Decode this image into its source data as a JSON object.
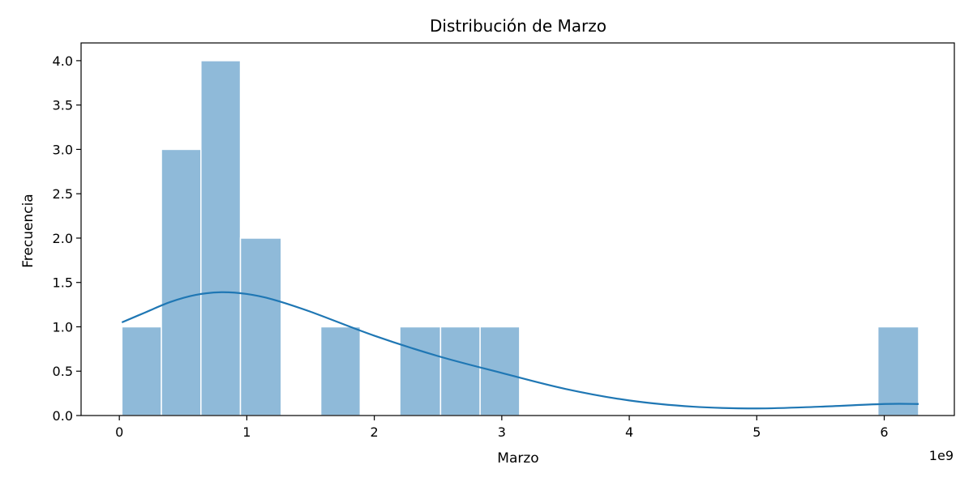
{
  "chart_data": {
    "type": "bar",
    "title": "Distribución de Marzo",
    "xlabel": "Marzo",
    "ylabel": "Frecuencia",
    "x_offset_label": "1e9",
    "x_scale": 1000000000,
    "xlim": [
      -0.3,
      6.55
    ],
    "ylim": [
      0,
      4.2
    ],
    "x_ticks": [
      0,
      1,
      2,
      3,
      4,
      5,
      6
    ],
    "x_tick_labels": [
      "0",
      "1",
      "2",
      "3",
      "4",
      "5",
      "6"
    ],
    "y_ticks": [
      0,
      0.5,
      1,
      1.5,
      2,
      2.5,
      3,
      3.5,
      4
    ],
    "y_tick_labels": [
      "0.0",
      "0.5",
      "1.0",
      "1.5",
      "2.0",
      "2.5",
      "3.0",
      "3.5",
      "4.0"
    ],
    "bins": [
      {
        "x0": 0.02,
        "x1": 0.33,
        "count": 1
      },
      {
        "x0": 0.33,
        "x1": 0.64,
        "count": 3
      },
      {
        "x0": 0.64,
        "x1": 0.95,
        "count": 4
      },
      {
        "x0": 0.95,
        "x1": 1.27,
        "count": 2
      },
      {
        "x0": 1.27,
        "x1": 1.58,
        "count": 0
      },
      {
        "x0": 1.58,
        "x1": 1.89,
        "count": 1
      },
      {
        "x0": 1.89,
        "x1": 2.2,
        "count": 0
      },
      {
        "x0": 2.2,
        "x1": 2.52,
        "count": 1
      },
      {
        "x0": 2.52,
        "x1": 2.83,
        "count": 1
      },
      {
        "x0": 2.83,
        "x1": 3.14,
        "count": 1
      },
      {
        "x0": 3.14,
        "x1": 3.45,
        "count": 0
      },
      {
        "x0": 3.45,
        "x1": 3.77,
        "count": 0
      },
      {
        "x0": 3.77,
        "x1": 4.08,
        "count": 0
      },
      {
        "x0": 4.08,
        "x1": 4.39,
        "count": 0
      },
      {
        "x0": 4.39,
        "x1": 4.7,
        "count": 0
      },
      {
        "x0": 4.7,
        "x1": 5.02,
        "count": 0
      },
      {
        "x0": 5.02,
        "x1": 5.33,
        "count": 0
      },
      {
        "x0": 5.33,
        "x1": 5.64,
        "count": 0
      },
      {
        "x0": 5.64,
        "x1": 5.95,
        "count": 0
      },
      {
        "x0": 5.95,
        "x1": 6.27,
        "count": 1
      }
    ],
    "kde": {
      "x": [
        0.02,
        0.2,
        0.4,
        0.6,
        0.8,
        1.0,
        1.2,
        1.5,
        2.0,
        2.5,
        3.0,
        3.5,
        4.0,
        4.5,
        5.0,
        5.5,
        6.0,
        6.27
      ],
      "y": [
        1.05,
        1.16,
        1.28,
        1.36,
        1.39,
        1.37,
        1.31,
        1.17,
        0.9,
        0.67,
        0.48,
        0.3,
        0.17,
        0.1,
        0.08,
        0.1,
        0.13,
        0.13
      ]
    },
    "grid": false,
    "bar_color": "#8fbad9",
    "line_color": "#1f77b4"
  }
}
